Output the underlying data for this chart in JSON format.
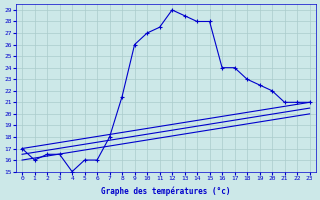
{
  "xlabel": "Graphe des températures (°c)",
  "bg_color": "#cce8e8",
  "grid_color": "#aacccc",
  "line_color": "#0000cc",
  "xlim": [
    -0.5,
    23.5
  ],
  "ylim": [
    15,
    29.5
  ],
  "xticks": [
    0,
    1,
    2,
    3,
    4,
    5,
    6,
    7,
    8,
    9,
    10,
    11,
    12,
    13,
    14,
    15,
    16,
    17,
    18,
    19,
    20,
    21,
    22,
    23
  ],
  "yticks": [
    15,
    16,
    17,
    18,
    19,
    20,
    21,
    22,
    23,
    24,
    25,
    26,
    27,
    28,
    29
  ],
  "line1_x": [
    0,
    1,
    2,
    3,
    4,
    5,
    6,
    7,
    8,
    9,
    10,
    11,
    12,
    13,
    14,
    15,
    16,
    17,
    18,
    19,
    20,
    21,
    22,
    23
  ],
  "line1_y": [
    17,
    16,
    16.5,
    16.5,
    15,
    16,
    16,
    18,
    21.5,
    26,
    27,
    27.5,
    29,
    28.5,
    28,
    28,
    24,
    24,
    23,
    22.5,
    22,
    21,
    21,
    21
  ],
  "line2_x": [
    0,
    23
  ],
  "line2_y": [
    17,
    21
  ],
  "line3_x": [
    0,
    23
  ],
  "line3_y": [
    16.5,
    20.5
  ],
  "line4_x": [
    0,
    23
  ],
  "line4_y": [
    16,
    20
  ]
}
